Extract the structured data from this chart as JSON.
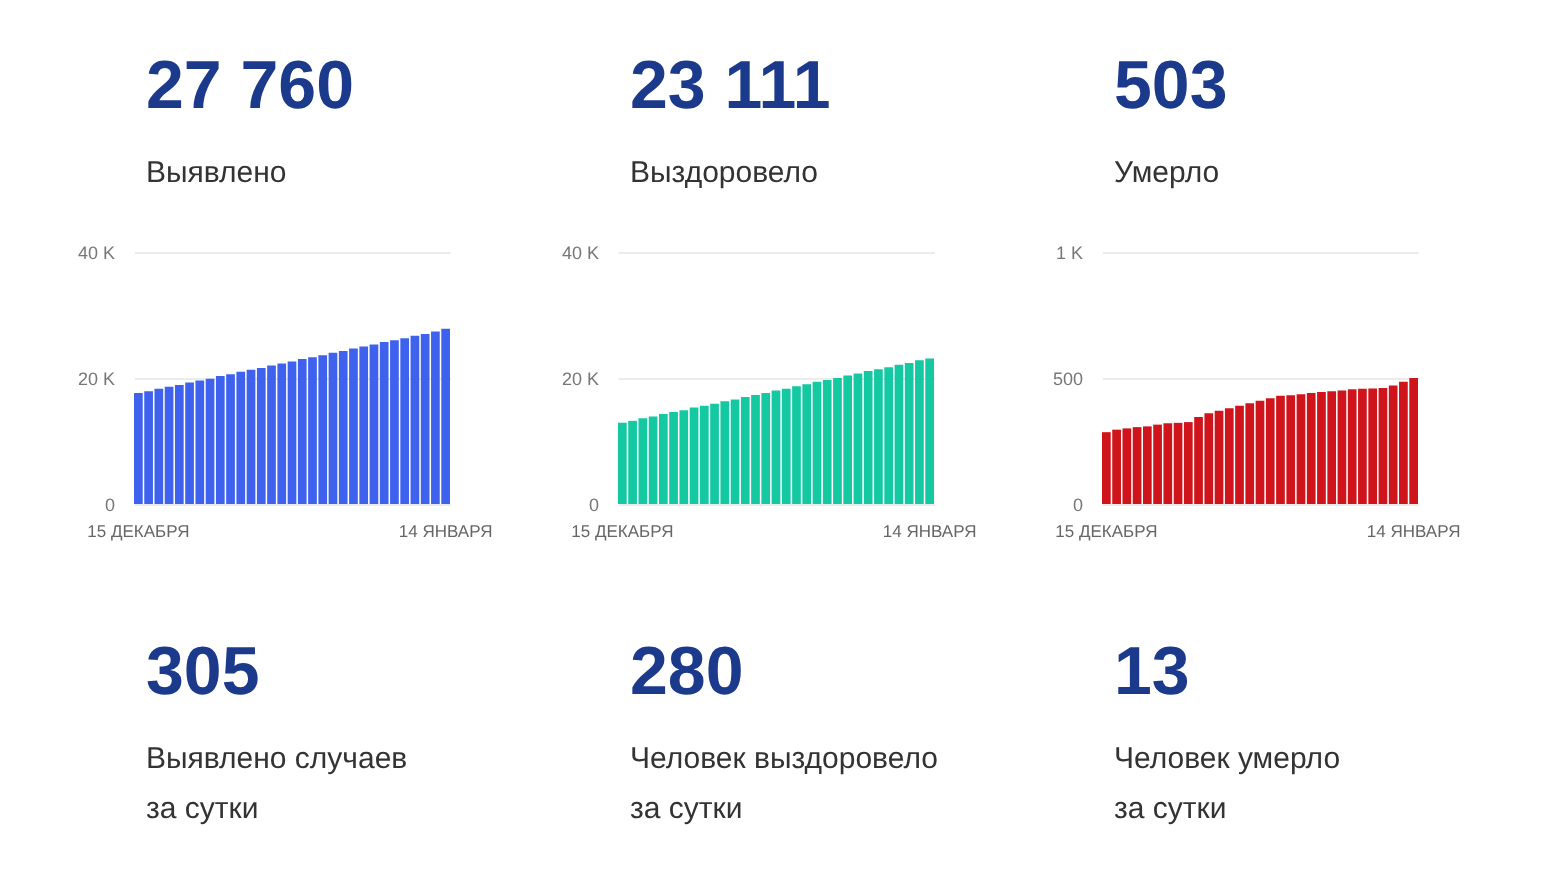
{
  "chart_data": [
    {
      "type": "other",
      "title": "27 760",
      "subtitle": "Выявлено"
    },
    {
      "type": "other",
      "title": "23 111",
      "subtitle": "Выздоровело"
    },
    {
      "type": "other",
      "title": "503",
      "subtitle": "Умерло"
    },
    {
      "type": "bar",
      "color": "#3e62ee",
      "grid": "y",
      "ylim": [
        0,
        40000
      ],
      "yticks": [
        0,
        {
          "value": 20000,
          "label": "20 K"
        },
        {
          "value": 40000,
          "label": "40 K"
        }
      ],
      "categories": [
        "15 ДЕКАБРЯ",
        null,
        null,
        null,
        null,
        null,
        null,
        null,
        null,
        null,
        null,
        null,
        null,
        null,
        null,
        null,
        null,
        null,
        null,
        null,
        null,
        null,
        null,
        null,
        null,
        null,
        null,
        null,
        null,
        null,
        "14 ЯНВАРЯ"
      ],
      "values": [
        17600,
        17900,
        18300,
        18600,
        18900,
        19300,
        19600,
        19900,
        20300,
        20600,
        21000,
        21300,
        21600,
        22000,
        22300,
        22600,
        23000,
        23300,
        23600,
        24000,
        24300,
        24700,
        25000,
        25300,
        25700,
        26000,
        26300,
        26700,
        27000,
        27400,
        27800
      ]
    },
    {
      "type": "bar",
      "color": "#14c8a2",
      "grid": "y",
      "ylim": [
        0,
        40000
      ],
      "yticks": [
        0,
        {
          "value": 20000,
          "label": "20 K"
        },
        {
          "value": 40000,
          "label": "40 K"
        }
      ],
      "categories": [
        "15 ДЕКАБРЯ",
        null,
        null,
        null,
        null,
        null,
        null,
        null,
        null,
        null,
        null,
        null,
        null,
        null,
        null,
        null,
        null,
        null,
        null,
        null,
        null,
        null,
        null,
        null,
        null,
        null,
        null,
        null,
        null,
        null,
        "14 ЯНВАРЯ"
      ],
      "values": [
        12900,
        13200,
        13600,
        13900,
        14300,
        14600,
        14900,
        15300,
        15600,
        15900,
        16300,
        16600,
        17000,
        17300,
        17600,
        18000,
        18300,
        18700,
        19000,
        19400,
        19700,
        20000,
        20400,
        20700,
        21100,
        21400,
        21700,
        22100,
        22400,
        22800,
        23100
      ]
    },
    {
      "type": "bar",
      "color": "#d0141b",
      "grid": "y",
      "ylim": [
        0,
        1000
      ],
      "yticks": [
        0,
        500,
        {
          "value": 1000,
          "label": "1 K"
        }
      ],
      "categories": [
        "15 ДЕКАБРЯ",
        null,
        null,
        null,
        null,
        null,
        null,
        null,
        null,
        null,
        null,
        null,
        null,
        null,
        null,
        null,
        null,
        null,
        null,
        null,
        null,
        null,
        null,
        null,
        null,
        null,
        null,
        null,
        null,
        null,
        "14 ЯНВАРЯ"
      ],
      "values": [
        285,
        295,
        300,
        305,
        308,
        315,
        320,
        322,
        325,
        345,
        360,
        370,
        380,
        390,
        400,
        410,
        420,
        430,
        432,
        436,
        440,
        444,
        447,
        450,
        455,
        457,
        458,
        460,
        470,
        485,
        500
      ]
    },
    {
      "type": "other",
      "title": "305",
      "subtitle": "Выявлено случаев\nза сутки"
    },
    {
      "type": "other",
      "title": "280",
      "subtitle": "Человек выздоровело\nза сутки"
    },
    {
      "type": "other",
      "title": "13",
      "subtitle": "Человек умерло\nза сутки"
    }
  ]
}
